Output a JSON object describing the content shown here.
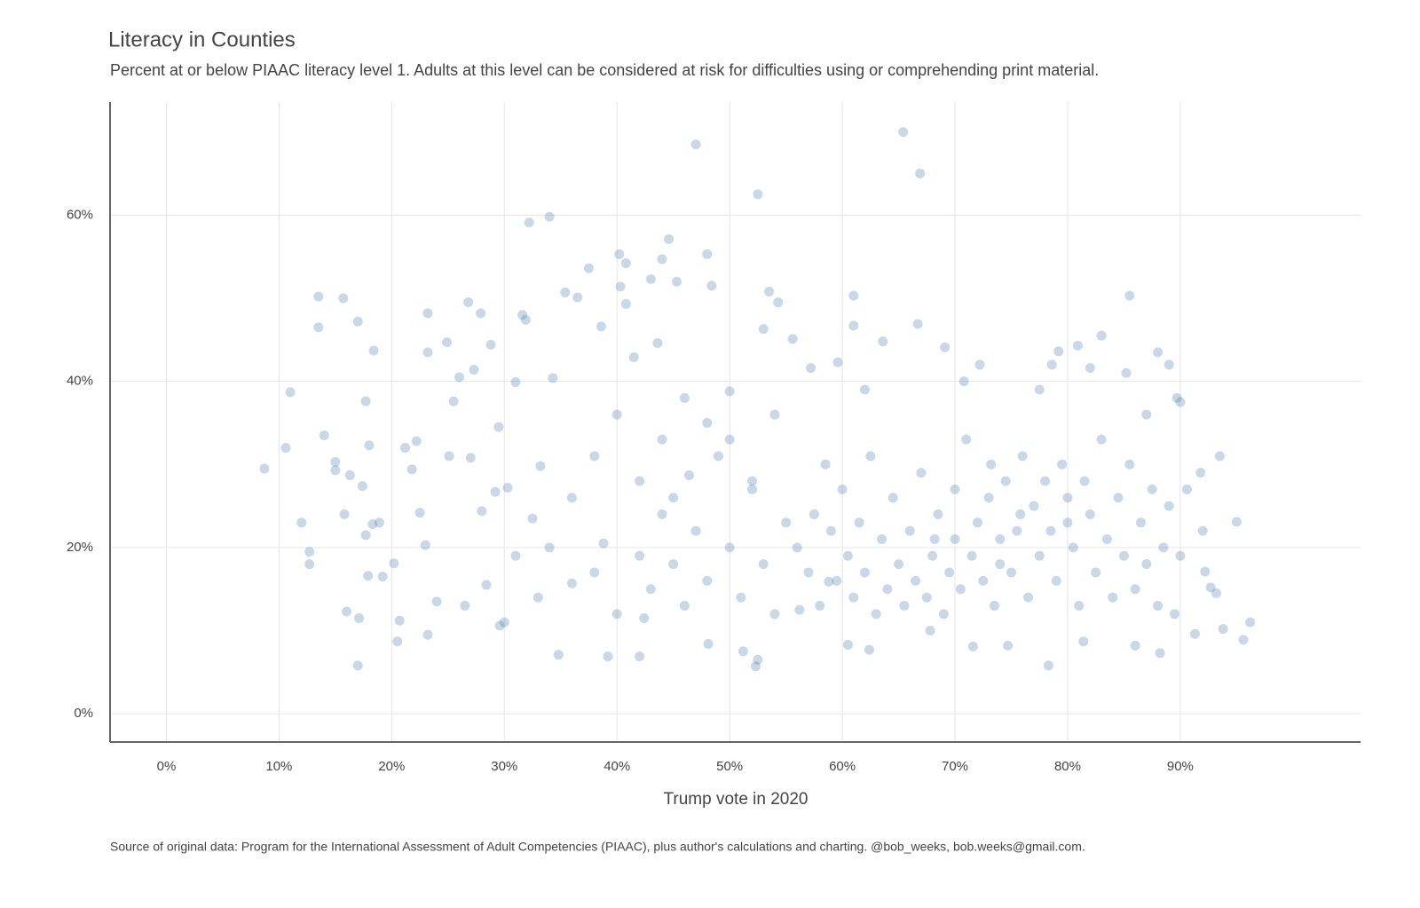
{
  "chart_data": {
    "type": "scatter",
    "title": "Literacy in Counties",
    "subtitle": "Percent at or below PIAAC literacy level 1. Adults at this level can be considered at risk for difficulties using or comprehending print material.",
    "x_label": "Trump vote in 2020",
    "source": "Source of original data: Program for the International Assessment of Adult Competencies (PIAAC), plus author's calculations and charting. @bob_weeks, bob.weeks@gmail.com.",
    "color": "#4a7fb0",
    "grid": true,
    "xlim": [
      -5,
      106
    ],
    "ylim": [
      -3.4,
      73.6
    ],
    "xticks": [
      {
        "value": 0,
        "label": "0%"
      },
      {
        "value": 10,
        "label": "10%"
      },
      {
        "value": 20,
        "label": "20%"
      },
      {
        "value": 30,
        "label": "30%"
      },
      {
        "value": 40,
        "label": "40%"
      },
      {
        "value": 50,
        "label": "50%"
      },
      {
        "value": 60,
        "label": "60%"
      },
      {
        "value": 70,
        "label": "70%"
      },
      {
        "value": 80,
        "label": "80%"
      },
      {
        "value": 90,
        "label": "90%"
      }
    ],
    "yticks": [
      {
        "value": 0,
        "label": "0%"
      },
      {
        "value": 20,
        "label": "20%"
      },
      {
        "value": 40,
        "label": "40%"
      },
      {
        "value": 60,
        "label": "60%"
      }
    ],
    "x": [
      8.7,
      11,
      10.6,
      12,
      12.7,
      12.7,
      13.5,
      13.5,
      14,
      15,
      15,
      15.7,
      15.8,
      16,
      16.3,
      17,
      17,
      17.1,
      17.4,
      17.7,
      17.7,
      17.9,
      18,
      18.4,
      18.3,
      18.9,
      19.2,
      20.2,
      20.5,
      20.7,
      21.2,
      21.8,
      22.2,
      22.5,
      23.2,
      23.2,
      23,
      23.2,
      24,
      24.9,
      25.1,
      25.5,
      26,
      26.5,
      26.8,
      27,
      27.3,
      27.9,
      28,
      28.4,
      28.8,
      29.2,
      29.5,
      29.6,
      30.3,
      31,
      31.6,
      31.9,
      32.2,
      32.5,
      33.2,
      34,
      34.3,
      34.8,
      35.4,
      36,
      36.5,
      37.5,
      38.6,
      38.8,
      39.2,
      40.2,
      40.3,
      40.8,
      40.8,
      41.5,
      42,
      42.4,
      43,
      43.6,
      44,
      44.6,
      45.3,
      45,
      46.4,
      47,
      48,
      48.4,
      48.1,
      50,
      51.2,
      52.5,
      52.5,
      52.3,
      53,
      53.5,
      54.3,
      55.6,
      56.2,
      57.2,
      58.8,
      59.6,
      60.5,
      61,
      61,
      62,
      62.4,
      63.6,
      65.4,
      66.7,
      66.9,
      67.8,
      68.2,
      69.1,
      70,
      70.8,
      71.6,
      72.2,
      73.2,
      74,
      74.7,
      75.8,
      77.5,
      78.3,
      78.6,
      79.2,
      80,
      80.9,
      81.4,
      82,
      83,
      85.5,
      85.2,
      86,
      87,
      88,
      88.2,
      89,
      89.7,
      90,
      90.6,
      91.3,
      91.8,
      92,
      92.2,
      92.7,
      93.2,
      93.5,
      93.8,
      95,
      95.6,
      96.2,
      56,
      57,
      57.5,
      58,
      58.5,
      59,
      59.5,
      60,
      60.5,
      61,
      61.5,
      62,
      62.5,
      63,
      63.5,
      64,
      64.5,
      65,
      65.5,
      66,
      66.5,
      67,
      67.5,
      68,
      68.5,
      69,
      69.5,
      70,
      70.5,
      71,
      71.5,
      72,
      72.5,
      73,
      73.5,
      74,
      74.5,
      75,
      75.5,
      76,
      76.5,
      77,
      77.5,
      78,
      78.5,
      79,
      79.5,
      80,
      80.5,
      81,
      81.5,
      82,
      82.5,
      83,
      83.5,
      84,
      84.5,
      85,
      85.5,
      86,
      86.5,
      87,
      87.5,
      88,
      88.5,
      89,
      89.5,
      90,
      45,
      46,
      47,
      48,
      49,
      50,
      51,
      52,
      53,
      54,
      55,
      42,
      43,
      44,
      40,
      38,
      36,
      34,
      33,
      31,
      30,
      48,
      50,
      52,
      54,
      46,
      44,
      42,
      40,
      38
    ],
    "values": [
      29.5,
      38.7,
      32,
      23,
      19.5,
      18,
      50.2,
      46.5,
      33.5,
      30.3,
      29.3,
      50,
      24,
      12.3,
      28.7,
      47.2,
      5.8,
      11.5,
      27.4,
      37.6,
      21.5,
      16.6,
      32.3,
      43.7,
      22.8,
      23,
      16.5,
      18.1,
      8.7,
      11.2,
      32,
      29.4,
      32.8,
      24.2,
      48.2,
      43.5,
      20.3,
      9.5,
      13.5,
      44.7,
      31,
      37.6,
      40.5,
      13,
      49.5,
      30.8,
      41.4,
      48.2,
      24.4,
      15.5,
      44.4,
      26.7,
      34.5,
      10.6,
      27.2,
      39.9,
      48,
      47.4,
      59.1,
      23.5,
      29.8,
      59.8,
      40.4,
      7.1,
      50.7,
      15.7,
      50.1,
      53.6,
      46.6,
      20.5,
      6.9,
      55.3,
      51.4,
      54.2,
      49.3,
      42.9,
      6.9,
      11.5,
      52.3,
      44.6,
      54.7,
      57.1,
      52,
      26,
      28.7,
      68.5,
      55.3,
      51.5,
      8.4,
      38.8,
      7.5,
      62.5,
      6.5,
      5.7,
      46.3,
      50.8,
      49.5,
      45.1,
      12.5,
      41.6,
      15.9,
      42.3,
      8.3,
      50.3,
      46.7,
      39,
      7.7,
      44.8,
      70,
      46.9,
      65,
      10,
      21,
      44.1,
      27,
      40,
      8.1,
      42,
      30,
      18,
      8.2,
      24,
      39,
      5.8,
      42,
      43.6,
      23,
      44.3,
      8.7,
      41.6,
      45.5,
      50.3,
      41,
      8.2,
      36,
      43.5,
      7.3,
      42,
      38,
      37.5,
      27,
      9.6,
      29,
      22,
      17.1,
      15.2,
      14.5,
      31,
      10.2,
      23.1,
      8.9,
      11,
      20,
      17,
      24,
      13,
      30,
      22,
      16,
      27,
      19,
      14,
      23,
      17,
      31,
      12,
      21,
      15,
      26,
      18,
      13,
      22,
      16,
      29,
      14,
      19,
      24,
      12,
      17,
      21,
      15,
      33,
      19,
      23,
      16,
      26,
      13,
      21,
      28,
      17,
      22,
      31,
      14,
      25,
      19,
      28,
      22,
      16,
      30,
      26,
      20,
      13,
      28,
      24,
      17,
      33,
      21,
      14,
      26,
      19,
      30,
      15,
      23,
      18,
      27,
      13,
      20,
      25,
      12,
      19,
      18,
      13,
      22,
      16,
      31,
      20,
      14,
      27,
      18,
      12,
      23,
      19,
      15,
      24,
      12,
      17,
      26,
      20,
      14,
      19,
      11,
      35,
      33,
      28,
      36,
      38,
      33,
      28,
      36,
      31
    ]
  }
}
